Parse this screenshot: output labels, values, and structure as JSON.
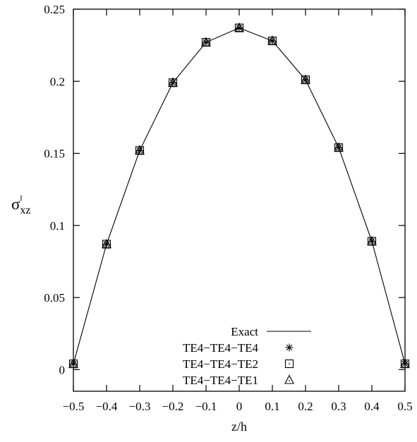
{
  "chart_data": {
    "type": "line",
    "xlabel": "z/h",
    "ylabel": {
      "symbol": "σ",
      "subscript": "xz"
    },
    "xlim": [
      -0.5,
      0.5
    ],
    "ylim": [
      -0.015,
      0.25
    ],
    "xticks": [
      -0.5,
      -0.4,
      -0.3,
      -0.2,
      -0.1,
      0,
      0.1,
      0.2,
      0.3,
      0.4,
      0.5
    ],
    "xtick_labels": [
      "−0.5",
      "−0.4",
      "−0.3",
      "−0.2",
      "−0.1",
      "0",
      "0.1",
      "0.2",
      "0.3",
      "0.4",
      "0.5"
    ],
    "yticks": [
      0,
      0.05,
      0.1,
      0.15,
      0.2,
      0.25
    ],
    "ytick_labels": [
      "0",
      "0.05",
      "0.1",
      "0.15",
      "0.2",
      "0.25"
    ],
    "grid": false,
    "legend_position": "bottom-center",
    "series": [
      {
        "name": "Exact",
        "style": "line",
        "color": "#000000",
        "x": [
          -0.5,
          -0.4,
          -0.3,
          -0.2,
          -0.1,
          0,
          0.1,
          0.2,
          0.3,
          0.4,
          0.5
        ],
        "y": [
          0.004,
          0.087,
          0.152,
          0.199,
          0.227,
          0.237,
          0.228,
          0.201,
          0.154,
          0.089,
          0.004
        ]
      },
      {
        "name": "TE4−TE4−TE4",
        "style": "marker",
        "marker": "asterisk",
        "color": "#000000",
        "x": [
          -0.5,
          -0.4,
          -0.3,
          -0.2,
          -0.1,
          0,
          0.1,
          0.2,
          0.3,
          0.4,
          0.5
        ],
        "y": [
          0.004,
          0.087,
          0.152,
          0.199,
          0.227,
          0.237,
          0.228,
          0.201,
          0.154,
          0.089,
          0.004
        ]
      },
      {
        "name": "TE4−TE4−TE2",
        "style": "marker",
        "marker": "square",
        "color": "#000000",
        "x": [
          -0.5,
          -0.4,
          -0.3,
          -0.2,
          -0.1,
          0,
          0.1,
          0.2,
          0.3,
          0.4,
          0.5
        ],
        "y": [
          0.004,
          0.087,
          0.152,
          0.199,
          0.227,
          0.237,
          0.228,
          0.201,
          0.154,
          0.089,
          0.004
        ]
      },
      {
        "name": "TE4−TE4−TE1",
        "style": "marker",
        "marker": "triangle",
        "color": "#000000",
        "x": [
          -0.5,
          -0.4,
          -0.3,
          -0.2,
          -0.1,
          0,
          0.1,
          0.2,
          0.3,
          0.4,
          0.5
        ],
        "y": [
          0.004,
          0.087,
          0.152,
          0.199,
          0.227,
          0.237,
          0.228,
          0.201,
          0.154,
          0.089,
          0.004
        ]
      }
    ]
  }
}
